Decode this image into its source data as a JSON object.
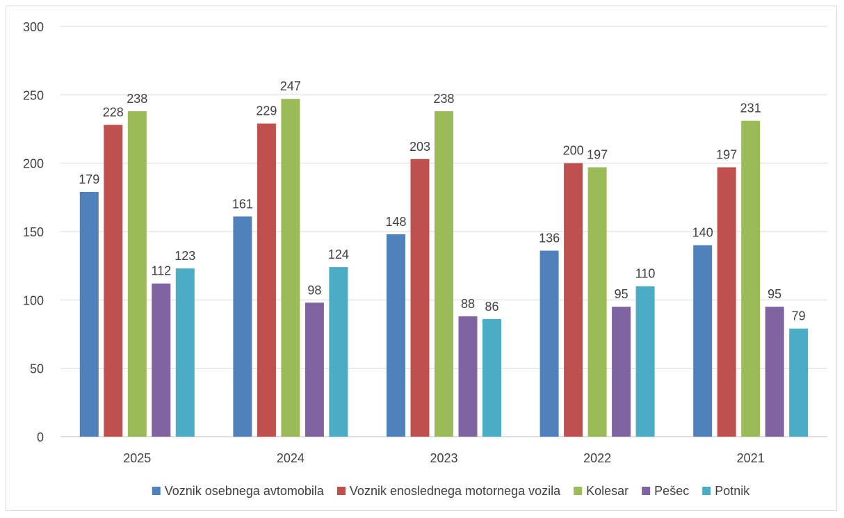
{
  "chart_data": {
    "type": "bar",
    "categories": [
      "2025",
      "2024",
      "2023",
      "2022",
      "2021"
    ],
    "series": [
      {
        "name": "Voznik osebnega avtomobila",
        "color": "#4f81bd",
        "values": [
          179,
          161,
          148,
          136,
          140
        ]
      },
      {
        "name": "Voznik enoslednega motornega vozila",
        "color": "#c0504d",
        "values": [
          228,
          229,
          203,
          200,
          197
        ]
      },
      {
        "name": "Kolesar",
        "color": "#9bbb59",
        "values": [
          238,
          247,
          238,
          197,
          231
        ]
      },
      {
        "name": "Pešec",
        "color": "#8064a2",
        "values": [
          112,
          98,
          88,
          95,
          95
        ]
      },
      {
        "name": "Potnik",
        "color": "#4bacc6",
        "values": [
          123,
          124,
          86,
          110,
          79
        ]
      }
    ],
    "ylim": [
      0,
      300
    ],
    "yticks": [
      0,
      50,
      100,
      150,
      200,
      250,
      300
    ],
    "grid": true,
    "legend": "bottom",
    "data_labels": true
  }
}
